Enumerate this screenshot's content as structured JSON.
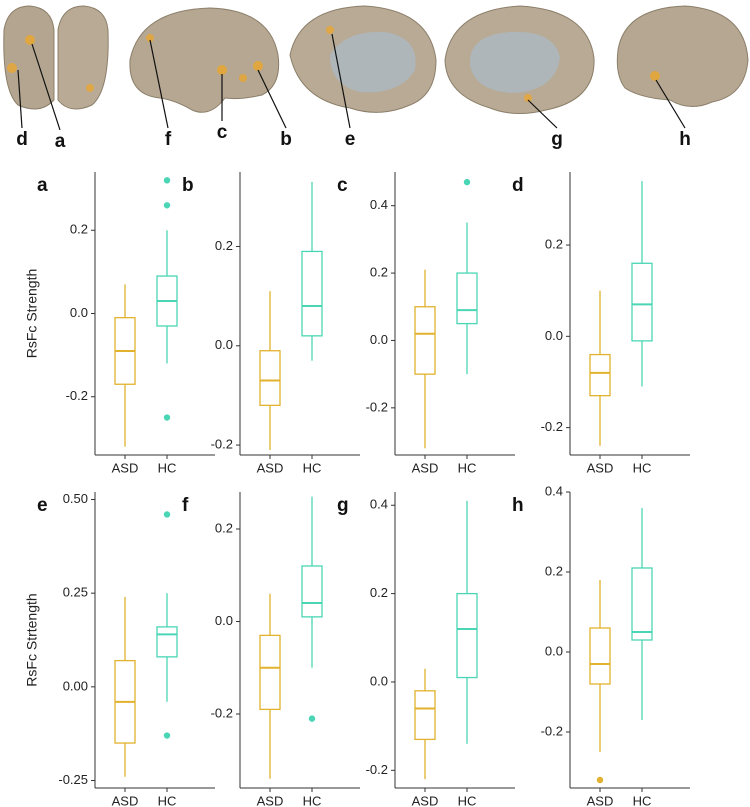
{
  "brain_labels": [
    "d",
    "a",
    "f",
    "c",
    "b",
    "e",
    "g",
    "h"
  ],
  "chart_data": [
    {
      "type": "box",
      "label": "a",
      "y_label": "RsFc Strength",
      "categories": [
        "ASD",
        "HC"
      ],
      "colors": [
        "#e2b22e",
        "#4ad6b4"
      ],
      "ylim": [
        -0.34,
        0.34
      ],
      "yticks": [
        -0.2,
        {
          "value": 0,
          "label": "0.0"
        },
        0.2
      ],
      "boxes": [
        {
          "min": -0.32,
          "q1": -0.17,
          "median": -0.09,
          "q3": -0.01,
          "max": 0.07,
          "outliers": []
        },
        {
          "min": -0.12,
          "q1": -0.03,
          "median": 0.03,
          "q3": 0.09,
          "max": 0.2,
          "outliers": [
            0.32,
            0.26,
            -0.25
          ]
        }
      ]
    },
    {
      "type": "box",
      "label": "b",
      "categories": [
        "ASD",
        "HC"
      ],
      "colors": [
        "#e2b22e",
        "#4ad6b4"
      ],
      "ylim": [
        -0.22,
        0.35
      ],
      "yticks": [
        -0.2,
        {
          "value": 0,
          "label": "0.0"
        },
        0.2
      ],
      "boxes": [
        {
          "min": -0.21,
          "q1": -0.12,
          "median": -0.07,
          "q3": -0.01,
          "max": 0.11,
          "outliers": []
        },
        {
          "min": -0.03,
          "q1": 0.02,
          "median": 0.08,
          "q3": 0.19,
          "max": 0.33,
          "outliers": []
        }
      ]
    },
    {
      "type": "box",
      "label": "c",
      "categories": [
        "ASD",
        "HC"
      ],
      "colors": [
        "#e2b22e",
        "#4ad6b4"
      ],
      "ylim": [
        -0.34,
        0.5
      ],
      "yticks": [
        -0.2,
        {
          "value": 0,
          "label": "0.0"
        },
        0.2,
        0.4
      ],
      "boxes": [
        {
          "min": -0.32,
          "q1": -0.1,
          "median": 0.02,
          "q3": 0.1,
          "max": 0.21,
          "outliers": []
        },
        {
          "min": -0.1,
          "q1": 0.05,
          "median": 0.09,
          "q3": 0.2,
          "max": 0.35,
          "outliers": [
            0.47
          ]
        }
      ]
    },
    {
      "type": "box",
      "label": "d",
      "categories": [
        "ASD",
        "HC"
      ],
      "colors": [
        "#e2b22e",
        "#4ad6b4"
      ],
      "ylim": [
        -0.26,
        0.36
      ],
      "yticks": [
        -0.2,
        {
          "value": 0,
          "label": "0.0"
        },
        0.2
      ],
      "boxes": [
        {
          "min": -0.24,
          "q1": -0.13,
          "median": -0.08,
          "q3": -0.04,
          "max": 0.1,
          "outliers": []
        },
        {
          "min": -0.11,
          "q1": -0.01,
          "median": 0.07,
          "q3": 0.16,
          "max": 0.34,
          "outliers": []
        }
      ]
    },
    {
      "type": "box",
      "label": "e",
      "y_label": "RsFc Strtength",
      "categories": [
        "ASD",
        "HC"
      ],
      "colors": [
        "#e2b22e",
        "#4ad6b4"
      ],
      "ylim": [
        -0.27,
        0.52
      ],
      "yticks": [
        -0.25,
        {
          "value": 0,
          "label": "0.00"
        },
        0.25,
        {
          "value": 0.5,
          "label": "0.50"
        }
      ],
      "boxes": [
        {
          "min": -0.24,
          "q1": -0.15,
          "median": -0.04,
          "q3": 0.07,
          "max": 0.24,
          "outliers": []
        },
        {
          "min": -0.04,
          "q1": 0.08,
          "median": 0.14,
          "q3": 0.16,
          "max": 0.25,
          "outliers": [
            0.46,
            -0.13
          ]
        }
      ]
    },
    {
      "type": "box",
      "label": "f",
      "categories": [
        "ASD",
        "HC"
      ],
      "colors": [
        "#e2b22e",
        "#4ad6b4"
      ],
      "ylim": [
        -0.36,
        0.28
      ],
      "yticks": [
        -0.2,
        {
          "value": 0,
          "label": "0.0"
        },
        0.2
      ],
      "boxes": [
        {
          "min": -0.34,
          "q1": -0.19,
          "median": -0.1,
          "q3": -0.03,
          "max": 0.06,
          "outliers": []
        },
        {
          "min": -0.1,
          "q1": 0.01,
          "median": 0.04,
          "q3": 0.12,
          "max": 0.27,
          "outliers": [
            -0.21
          ]
        }
      ]
    },
    {
      "type": "box",
      "label": "g",
      "categories": [
        "ASD",
        "HC"
      ],
      "colors": [
        "#e2b22e",
        "#4ad6b4"
      ],
      "ylim": [
        -0.24,
        0.43
      ],
      "yticks": [
        -0.2,
        {
          "value": 0,
          "label": "0.0"
        },
        0.2,
        0.4
      ],
      "boxes": [
        {
          "min": -0.22,
          "q1": -0.13,
          "median": -0.06,
          "q3": -0.02,
          "max": 0.03,
          "outliers": []
        },
        {
          "min": -0.14,
          "q1": 0.01,
          "median": 0.12,
          "q3": 0.2,
          "max": 0.41,
          "outliers": []
        }
      ]
    },
    {
      "type": "box",
      "label": "h",
      "categories": [
        "ASD",
        "HC"
      ],
      "colors": [
        "#e2b22e",
        "#4ad6b4"
      ],
      "ylim": [
        -0.34,
        0.4
      ],
      "yticks": [
        -0.2,
        {
          "value": 0,
          "label": "0.0"
        },
        0.2,
        0.4
      ],
      "boxes": [
        {
          "min": -0.25,
          "q1": -0.08,
          "median": -0.03,
          "q3": 0.06,
          "max": 0.18,
          "outliers": [
            -0.32
          ]
        },
        {
          "min": -0.17,
          "q1": 0.03,
          "median": 0.05,
          "q3": 0.21,
          "max": 0.36,
          "outliers": []
        }
      ]
    }
  ]
}
